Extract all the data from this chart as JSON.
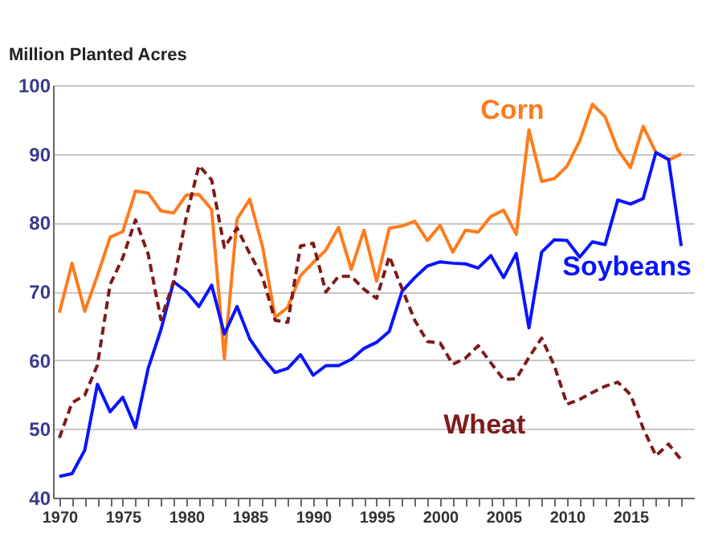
{
  "chart_data": {
    "type": "line",
    "ylabel": "Million Planted Acres",
    "x": [
      1970,
      1971,
      1972,
      1973,
      1974,
      1975,
      1976,
      1977,
      1978,
      1979,
      1980,
      1981,
      1982,
      1983,
      1984,
      1985,
      1986,
      1987,
      1988,
      1989,
      1990,
      1991,
      1992,
      1993,
      1994,
      1995,
      1996,
      1997,
      1998,
      1999,
      2000,
      2001,
      2002,
      2003,
      2004,
      2005,
      2006,
      2007,
      2008,
      2009,
      2010,
      2011,
      2012,
      2013,
      2014,
      2015,
      2016,
      2017,
      2018,
      2019
    ],
    "series": [
      {
        "name": "Corn",
        "color": "#ff7b1c",
        "line_style": "solid",
        "values": [
          66.9,
          74.1,
          67.1,
          72.3,
          77.9,
          78.7,
          84.6,
          84.3,
          81.7,
          81.4,
          84.0,
          84.1,
          81.9,
          60.2,
          80.5,
          83.4,
          76.6,
          66.2,
          67.7,
          72.3,
          74.2,
          76.0,
          79.3,
          73.2,
          78.9,
          71.5,
          79.2,
          79.5,
          80.2,
          77.4,
          79.6,
          75.7,
          78.9,
          78.6,
          80.9,
          81.8,
          78.3,
          93.5,
          86.0,
          86.4,
          88.2,
          91.9,
          97.2,
          95.4,
          90.6,
          88.0,
          94.0,
          90.2,
          89.1,
          90.0
        ]
      },
      {
        "name": "Soybeans",
        "color": "#0a14ff",
        "line_style": "solid",
        "values": [
          43.1,
          43.5,
          46.9,
          56.5,
          52.5,
          54.6,
          50.2,
          58.8,
          64.4,
          71.4,
          70.0,
          67.8,
          70.9,
          63.8,
          67.8,
          63.1,
          60.4,
          58.2,
          58.8,
          60.8,
          57.8,
          59.2,
          59.2,
          60.1,
          61.7,
          62.6,
          64.2,
          70.0,
          72.0,
          73.7,
          74.3,
          74.1,
          74.0,
          73.4,
          75.2,
          72.0,
          75.5,
          64.7,
          75.7,
          77.5,
          77.4,
          75.0,
          77.2,
          76.8,
          83.3,
          82.7,
          83.5,
          90.2,
          89.2,
          76.6
        ]
      },
      {
        "name": "Wheat",
        "color": "#7f1a1a",
        "line_style": "dashed",
        "values": [
          48.7,
          53.8,
          54.9,
          59.3,
          71.0,
          74.9,
          80.4,
          75.4,
          65.9,
          71.4,
          80.8,
          88.3,
          86.2,
          76.4,
          79.2,
          75.5,
          72.1,
          65.8,
          65.5,
          76.6,
          77.0,
          69.9,
          72.2,
          72.2,
          70.3,
          69.0,
          75.1,
          70.4,
          65.8,
          62.7,
          62.5,
          59.4,
          60.3,
          62.1,
          59.6,
          57.2,
          57.3,
          60.4,
          63.2,
          59.2,
          53.6,
          54.3,
          55.3,
          56.2,
          56.8,
          55.0,
          50.1,
          46.1,
          47.8,
          45.5
        ]
      }
    ],
    "xlim": [
      1969.5,
      2020
    ],
    "xticks": [
      1970,
      {
        "value": 1971,
        "label": null
      },
      {
        "value": 1972,
        "label": null
      },
      {
        "value": 1973,
        "label": null
      },
      {
        "value": 1974,
        "label": null
      },
      1975,
      {
        "value": 1976,
        "label": null
      },
      {
        "value": 1977,
        "label": null
      },
      {
        "value": 1978,
        "label": null
      },
      {
        "value": 1979,
        "label": null
      },
      1980,
      {
        "value": 1981,
        "label": null
      },
      {
        "value": 1982,
        "label": null
      },
      {
        "value": 1983,
        "label": null
      },
      {
        "value": 1984,
        "label": null
      },
      1985,
      {
        "value": 1986,
        "label": null
      },
      {
        "value": 1987,
        "label": null
      },
      {
        "value": 1988,
        "label": null
      },
      {
        "value": 1989,
        "label": null
      },
      1990,
      {
        "value": 1991,
        "label": null
      },
      {
        "value": 1992,
        "label": null
      },
      {
        "value": 1993,
        "label": null
      },
      {
        "value": 1994,
        "label": null
      },
      1995,
      {
        "value": 1996,
        "label": null
      },
      {
        "value": 1997,
        "label": null
      },
      {
        "value": 1998,
        "label": null
      },
      {
        "value": 1999,
        "label": null
      },
      2000,
      {
        "value": 2001,
        "label": null
      },
      {
        "value": 2002,
        "label": null
      },
      {
        "value": 2003,
        "label": null
      },
      {
        "value": 2004,
        "label": null
      },
      2005,
      {
        "value": 2006,
        "label": null
      },
      {
        "value": 2007,
        "label": null
      },
      {
        "value": 2008,
        "label": null
      },
      {
        "value": 2009,
        "label": null
      },
      2010,
      {
        "value": 2011,
        "label": null
      },
      {
        "value": 2012,
        "label": null
      },
      {
        "value": 2013,
        "label": null
      },
      {
        "value": 2014,
        "label": null
      },
      2015,
      {
        "value": 2016,
        "label": null
      },
      {
        "value": 2017,
        "label": null
      },
      {
        "value": 2018,
        "label": null
      },
      {
        "value": 2019,
        "label": null
      }
    ],
    "ylim": [
      40,
      100
    ],
    "yticks": [
      40,
      50,
      60,
      70,
      80,
      90,
      100
    ],
    "grid": "y",
    "marker": "none"
  }
}
